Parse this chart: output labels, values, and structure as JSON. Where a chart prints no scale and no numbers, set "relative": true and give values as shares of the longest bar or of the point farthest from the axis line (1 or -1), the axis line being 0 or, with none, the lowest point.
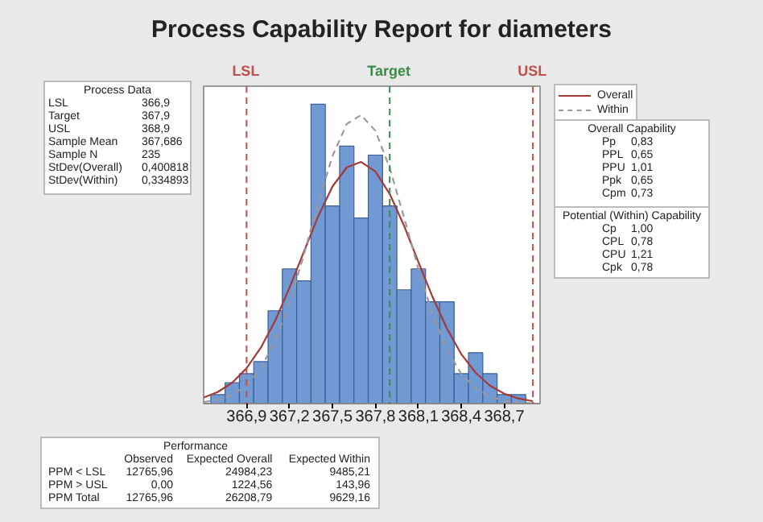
{
  "chart_data": {
    "type": "histogram",
    "title": "Process Capability Report for diameters",
    "relative": true,
    "color": "#7199d3",
    "bins": [
      366.65,
      366.75,
      366.85,
      366.95,
      367.05,
      367.15,
      367.25,
      367.35,
      367.45,
      367.55,
      367.65,
      367.75,
      367.85,
      367.95,
      368.05,
      368.15,
      368.25,
      368.35,
      368.45,
      368.55,
      368.65,
      368.75,
      368.85
    ],
    "values": [
      0.03,
      0.07,
      0.1,
      0.14,
      0.31,
      0.45,
      0.41,
      1,
      0.66,
      0.86,
      0.62,
      0.83,
      0.66,
      0.38,
      0.45,
      0.34,
      0.34,
      0.1,
      0.17,
      0.1,
      0.03,
      0.03
    ],
    "series": [
      {
        "name": "Overall",
        "type": "line",
        "color": "#a33a3a",
        "line_style": "solid",
        "x": [
          366.6,
          366.7,
          366.8,
          366.9,
          367.0,
          367.1,
          367.2,
          367.3,
          367.4,
          367.5,
          367.6,
          367.7,
          367.8,
          367.9,
          368.0,
          368.1,
          368.2,
          368.3,
          368.4,
          368.5,
          368.6,
          368.7,
          368.8,
          368.9
        ],
        "values": [
          0.02,
          0.039,
          0.07,
          0.118,
          0.187,
          0.277,
          0.387,
          0.507,
          0.625,
          0.725,
          0.789,
          0.807,
          0.775,
          0.7,
          0.594,
          0.473,
          0.355,
          0.25,
          0.165,
          0.103,
          0.06,
          0.033,
          0.017,
          0.008
        ]
      },
      {
        "name": "Within",
        "type": "line",
        "color": "#9a9a9a",
        "line_style": "dashed",
        "x": [
          366.6,
          366.7,
          366.8,
          366.9,
          367.0,
          367.1,
          367.2,
          367.3,
          367.4,
          367.5,
          367.6,
          367.7,
          367.8,
          367.9,
          368.0,
          368.1,
          368.2,
          368.3,
          368.4,
          368.5,
          368.6,
          368.7,
          368.8,
          368.9
        ],
        "values": [
          0.005,
          0.013,
          0.029,
          0.061,
          0.118,
          0.209,
          0.337,
          0.497,
          0.67,
          0.827,
          0.934,
          0.964,
          0.911,
          0.787,
          0.622,
          0.45,
          0.297,
          0.18,
          0.099,
          0.05,
          0.023,
          0.01,
          0.004,
          0.001
        ]
      }
    ],
    "xlim": [
      366.6,
      368.95
    ],
    "xticks": [
      {
        "value": 366.9,
        "label": "366,9"
      },
      {
        "value": 367.2,
        "label": "367,2"
      },
      {
        "value": 367.5,
        "label": "367,5"
      },
      {
        "value": 367.8,
        "label": "367,8"
      },
      {
        "value": 368.1,
        "label": "368,1"
      },
      {
        "value": 368.4,
        "label": "368,4"
      },
      {
        "value": 368.7,
        "label": "368,7"
      }
    ],
    "ref_lines": [
      {
        "axis": "x",
        "value": 366.9,
        "label": "LSL",
        "color": "#c0504d",
        "line_style": "dashed"
      },
      {
        "axis": "x",
        "value": 367.9,
        "label": "Target",
        "color": "#3c8a4a",
        "line_style": "dashed"
      },
      {
        "axis": "x",
        "value": 368.9,
        "label": "USL",
        "color": "#c0504d",
        "line_style": "dashed"
      }
    ],
    "legend": "top right",
    "grid": false,
    "tick_labels": "x",
    "annotations": [
      "Process Data",
      "LSL",
      "366,9",
      "Target",
      "367,9",
      "USL",
      "368,9",
      "Sample Mean",
      "367,686",
      "Sample N",
      "235",
      "StDev(Overall)",
      "0,400818",
      "StDev(Within)",
      "0,334893",
      "Overall Capability",
      "Pp",
      "0,83",
      "PPL",
      "0,65",
      "PPU",
      "1,01",
      "Ppk",
      "0,65",
      "Cpm",
      "0,73",
      "Potential (Within) Capability",
      "Cp",
      "1,00",
      "CPL",
      "0,78",
      "CPU",
      "1,21",
      "Cpk",
      "0,78",
      "Performance",
      "Observed",
      "Expected Overall",
      "Expected Within",
      "PPM < LSL",
      "12765,96",
      "24984,23",
      "9485,21",
      "PPM > USL",
      "0,00",
      "1224,56",
      "143,96",
      "PPM Total",
      "12765,96",
      "26208,79",
      "9629,16"
    ]
  }
}
